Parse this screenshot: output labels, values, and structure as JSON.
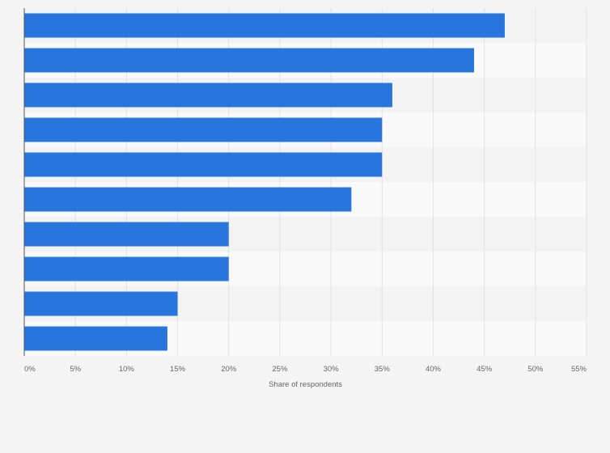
{
  "chart_data": {
    "type": "bar",
    "orientation": "horizontal",
    "categories": [
      "",
      "",
      "",
      "",
      "",
      "",
      "",
      "",
      "",
      ""
    ],
    "values": [
      47,
      44,
      36,
      35,
      35,
      32,
      20,
      20,
      15,
      14
    ],
    "xlabel": "Share of respondents",
    "ylabel": "",
    "xlim": [
      0,
      55
    ],
    "xticks": [
      0,
      5,
      10,
      15,
      20,
      25,
      30,
      35,
      40,
      45,
      50,
      55
    ],
    "tick_labels": [
      "0%",
      "5%",
      "10%",
      "15%",
      "20%",
      "25%",
      "30%",
      "35%",
      "40%",
      "45%",
      "50%",
      "55%"
    ],
    "grid": true,
    "legend": "none",
    "colors": {
      "bar": "#2876dd",
      "background": "#f4f4f4",
      "band_light": "#f9f9f9",
      "band_dark": "#f3f3f3",
      "grid": "#e2e2e2",
      "axis": "#555555",
      "text": "#666666"
    }
  }
}
